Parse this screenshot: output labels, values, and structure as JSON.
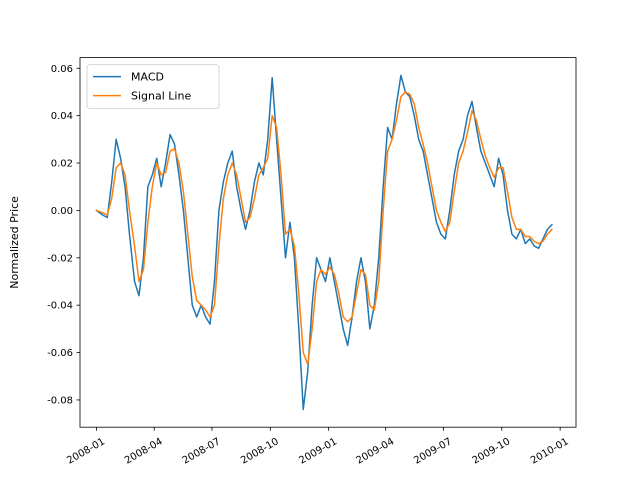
{
  "chart_data": {
    "type": "line",
    "xlabel": "",
    "ylabel": "Normalized Price",
    "xlim": [
      "2007-12-06",
      "2010-01-26"
    ],
    "ylim": [
      -0.0915,
      0.0645
    ],
    "x_ticks": [
      "2008-01",
      "2008-04",
      "2008-07",
      "2008-10",
      "2009-01",
      "2009-04",
      "2009-07",
      "2009-10",
      "2010-01"
    ],
    "y_ticks": [
      "-0.08",
      "-0.06",
      "-0.04",
      "-0.02",
      "0.00",
      "0.02",
      "0.04",
      "0.06"
    ],
    "legend_position": "upper-left",
    "grid": false,
    "series": [
      {
        "name": "MACD",
        "color": "#1f77b4",
        "points": [
          [
            "2008-01-01",
            0.0
          ],
          [
            "2008-01-11",
            -0.002
          ],
          [
            "2008-01-18",
            -0.003
          ],
          [
            "2008-01-25",
            0.012
          ],
          [
            "2008-02-01",
            0.03
          ],
          [
            "2008-02-08",
            0.022
          ],
          [
            "2008-02-15",
            0.01
          ],
          [
            "2008-02-22",
            -0.01
          ],
          [
            "2008-03-01",
            -0.03
          ],
          [
            "2008-03-08",
            -0.036
          ],
          [
            "2008-03-15",
            -0.02
          ],
          [
            "2008-03-22",
            0.01
          ],
          [
            "2008-03-29",
            0.015
          ],
          [
            "2008-04-05",
            0.022
          ],
          [
            "2008-04-12",
            0.01
          ],
          [
            "2008-04-19",
            0.02
          ],
          [
            "2008-04-26",
            0.032
          ],
          [
            "2008-05-03",
            0.028
          ],
          [
            "2008-05-10",
            0.015
          ],
          [
            "2008-05-17",
            0.0
          ],
          [
            "2008-05-24",
            -0.02
          ],
          [
            "2008-05-31",
            -0.04
          ],
          [
            "2008-06-07",
            -0.045
          ],
          [
            "2008-06-14",
            -0.04
          ],
          [
            "2008-06-21",
            -0.045
          ],
          [
            "2008-06-28",
            -0.048
          ],
          [
            "2008-07-05",
            -0.03
          ],
          [
            "2008-07-12",
            0.0
          ],
          [
            "2008-07-19",
            0.012
          ],
          [
            "2008-07-26",
            0.02
          ],
          [
            "2008-08-02",
            0.025
          ],
          [
            "2008-08-09",
            0.01
          ],
          [
            "2008-08-16",
            0.0
          ],
          [
            "2008-08-23",
            -0.008
          ],
          [
            "2008-08-30",
            0.0
          ],
          [
            "2008-09-06",
            0.012
          ],
          [
            "2008-09-13",
            0.02
          ],
          [
            "2008-09-20",
            0.015
          ],
          [
            "2008-09-27",
            0.03
          ],
          [
            "2008-10-04",
            0.056
          ],
          [
            "2008-10-11",
            0.03
          ],
          [
            "2008-10-18",
            0.005
          ],
          [
            "2008-10-25",
            -0.02
          ],
          [
            "2008-11-01",
            -0.005
          ],
          [
            "2008-11-08",
            -0.02
          ],
          [
            "2008-11-15",
            -0.05
          ],
          [
            "2008-11-22",
            -0.084
          ],
          [
            "2008-11-29",
            -0.068
          ],
          [
            "2008-12-06",
            -0.04
          ],
          [
            "2008-12-13",
            -0.02
          ],
          [
            "2008-12-20",
            -0.025
          ],
          [
            "2008-12-27",
            -0.03
          ],
          [
            "2009-01-03",
            -0.02
          ],
          [
            "2009-01-10",
            -0.03
          ],
          [
            "2009-01-17",
            -0.04
          ],
          [
            "2009-01-24",
            -0.05
          ],
          [
            "2009-01-31",
            -0.057
          ],
          [
            "2009-02-07",
            -0.045
          ],
          [
            "2009-02-14",
            -0.03
          ],
          [
            "2009-02-21",
            -0.02
          ],
          [
            "2009-02-28",
            -0.03
          ],
          [
            "2009-03-07",
            -0.05
          ],
          [
            "2009-03-14",
            -0.04
          ],
          [
            "2009-03-21",
            -0.02
          ],
          [
            "2009-03-28",
            0.01
          ],
          [
            "2009-04-04",
            0.035
          ],
          [
            "2009-04-11",
            0.03
          ],
          [
            "2009-04-18",
            0.045
          ],
          [
            "2009-04-25",
            0.057
          ],
          [
            "2009-05-02",
            0.05
          ],
          [
            "2009-05-09",
            0.048
          ],
          [
            "2009-05-16",
            0.04
          ],
          [
            "2009-05-23",
            0.03
          ],
          [
            "2009-05-30",
            0.025
          ],
          [
            "2009-06-06",
            0.015
          ],
          [
            "2009-06-13",
            0.005
          ],
          [
            "2009-06-20",
            -0.005
          ],
          [
            "2009-06-27",
            -0.01
          ],
          [
            "2009-07-04",
            -0.012
          ],
          [
            "2009-07-11",
            0.0
          ],
          [
            "2009-07-18",
            0.015
          ],
          [
            "2009-07-25",
            0.025
          ],
          [
            "2009-08-01",
            0.03
          ],
          [
            "2009-08-08",
            0.04
          ],
          [
            "2009-08-15",
            0.046
          ],
          [
            "2009-08-22",
            0.035
          ],
          [
            "2009-08-29",
            0.025
          ],
          [
            "2009-09-05",
            0.02
          ],
          [
            "2009-09-12",
            0.015
          ],
          [
            "2009-09-19",
            0.01
          ],
          [
            "2009-09-26",
            0.022
          ],
          [
            "2009-10-03",
            0.015
          ],
          [
            "2009-10-10",
            0.0
          ],
          [
            "2009-10-17",
            -0.01
          ],
          [
            "2009-10-24",
            -0.012
          ],
          [
            "2009-10-31",
            -0.008
          ],
          [
            "2009-11-07",
            -0.014
          ],
          [
            "2009-11-14",
            -0.012
          ],
          [
            "2009-11-21",
            -0.015
          ],
          [
            "2009-11-28",
            -0.016
          ],
          [
            "2009-12-05",
            -0.012
          ],
          [
            "2009-12-12",
            -0.008
          ],
          [
            "2009-12-19",
            -0.006
          ]
        ]
      },
      {
        "name": "Signal Line",
        "color": "#ff7f0e",
        "points": [
          [
            "2008-01-01",
            0.0
          ],
          [
            "2008-01-11",
            -0.001
          ],
          [
            "2008-01-18",
            -0.002
          ],
          [
            "2008-01-25",
            0.005
          ],
          [
            "2008-02-01",
            0.018
          ],
          [
            "2008-02-08",
            0.02
          ],
          [
            "2008-02-15",
            0.015
          ],
          [
            "2008-02-22",
            0.0
          ],
          [
            "2008-03-01",
            -0.015
          ],
          [
            "2008-03-08",
            -0.03
          ],
          [
            "2008-03-15",
            -0.025
          ],
          [
            "2008-03-22",
            -0.005
          ],
          [
            "2008-03-29",
            0.01
          ],
          [
            "2008-04-05",
            0.02
          ],
          [
            "2008-04-12",
            0.015
          ],
          [
            "2008-04-19",
            0.016
          ],
          [
            "2008-04-26",
            0.025
          ],
          [
            "2008-05-03",
            0.026
          ],
          [
            "2008-05-10",
            0.02
          ],
          [
            "2008-05-17",
            0.008
          ],
          [
            "2008-05-24",
            -0.01
          ],
          [
            "2008-05-31",
            -0.028
          ],
          [
            "2008-06-07",
            -0.038
          ],
          [
            "2008-06-14",
            -0.04
          ],
          [
            "2008-06-21",
            -0.042
          ],
          [
            "2008-06-28",
            -0.045
          ],
          [
            "2008-07-05",
            -0.04
          ],
          [
            "2008-07-12",
            -0.015
          ],
          [
            "2008-07-19",
            0.005
          ],
          [
            "2008-07-26",
            0.015
          ],
          [
            "2008-08-02",
            0.02
          ],
          [
            "2008-08-09",
            0.015
          ],
          [
            "2008-08-16",
            0.005
          ],
          [
            "2008-08-23",
            -0.005
          ],
          [
            "2008-08-30",
            -0.003
          ],
          [
            "2008-09-06",
            0.005
          ],
          [
            "2008-09-13",
            0.015
          ],
          [
            "2008-09-20",
            0.018
          ],
          [
            "2008-09-27",
            0.022
          ],
          [
            "2008-10-04",
            0.04
          ],
          [
            "2008-10-11",
            0.035
          ],
          [
            "2008-10-18",
            0.015
          ],
          [
            "2008-10-25",
            -0.01
          ],
          [
            "2008-11-01",
            -0.008
          ],
          [
            "2008-11-08",
            -0.015
          ],
          [
            "2008-11-15",
            -0.035
          ],
          [
            "2008-11-22",
            -0.06
          ],
          [
            "2008-11-29",
            -0.065
          ],
          [
            "2008-12-06",
            -0.05
          ],
          [
            "2008-12-13",
            -0.03
          ],
          [
            "2008-12-20",
            -0.025
          ],
          [
            "2008-12-27",
            -0.027
          ],
          [
            "2009-01-03",
            -0.024
          ],
          [
            "2009-01-10",
            -0.027
          ],
          [
            "2009-01-17",
            -0.035
          ],
          [
            "2009-01-24",
            -0.045
          ],
          [
            "2009-01-31",
            -0.047
          ],
          [
            "2009-02-07",
            -0.045
          ],
          [
            "2009-02-14",
            -0.035
          ],
          [
            "2009-02-21",
            -0.025
          ],
          [
            "2009-02-28",
            -0.027
          ],
          [
            "2009-03-07",
            -0.04
          ],
          [
            "2009-03-14",
            -0.042
          ],
          [
            "2009-03-21",
            -0.03
          ],
          [
            "2009-03-28",
            0.0
          ],
          [
            "2009-04-04",
            0.025
          ],
          [
            "2009-04-11",
            0.03
          ],
          [
            "2009-04-18",
            0.038
          ],
          [
            "2009-04-25",
            0.048
          ],
          [
            "2009-05-02",
            0.05
          ],
          [
            "2009-05-09",
            0.049
          ],
          [
            "2009-05-16",
            0.045
          ],
          [
            "2009-05-23",
            0.035
          ],
          [
            "2009-05-30",
            0.028
          ],
          [
            "2009-06-06",
            0.02
          ],
          [
            "2009-06-13",
            0.01
          ],
          [
            "2009-06-20",
            0.0
          ],
          [
            "2009-06-27",
            -0.005
          ],
          [
            "2009-07-04",
            -0.009
          ],
          [
            "2009-07-11",
            -0.005
          ],
          [
            "2009-07-18",
            0.008
          ],
          [
            "2009-07-25",
            0.02
          ],
          [
            "2009-08-01",
            0.025
          ],
          [
            "2009-08-08",
            0.033
          ],
          [
            "2009-08-15",
            0.042
          ],
          [
            "2009-08-22",
            0.038
          ],
          [
            "2009-08-29",
            0.03
          ],
          [
            "2009-09-05",
            0.023
          ],
          [
            "2009-09-12",
            0.018
          ],
          [
            "2009-09-19",
            0.014
          ],
          [
            "2009-09-26",
            0.018
          ],
          [
            "2009-10-03",
            0.018
          ],
          [
            "2009-10-10",
            0.008
          ],
          [
            "2009-10-17",
            -0.003
          ],
          [
            "2009-10-24",
            -0.008
          ],
          [
            "2009-10-31",
            -0.008
          ],
          [
            "2009-11-07",
            -0.011
          ],
          [
            "2009-11-14",
            -0.011
          ],
          [
            "2009-11-21",
            -0.013
          ],
          [
            "2009-11-28",
            -0.014
          ],
          [
            "2009-12-05",
            -0.013
          ],
          [
            "2009-12-12",
            -0.01
          ],
          [
            "2009-12-19",
            -0.008
          ]
        ]
      }
    ]
  }
}
